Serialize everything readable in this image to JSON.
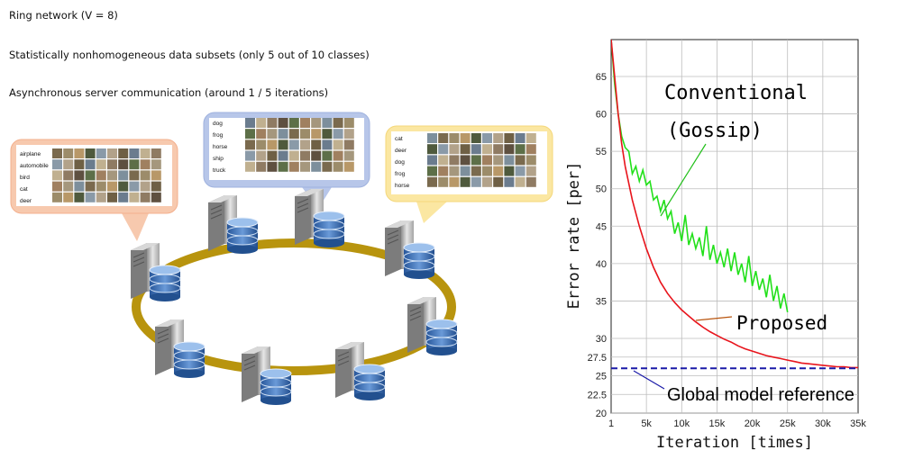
{
  "captions": [
    "Ring network (V = 8)",
    "Statistically nonhomogeneous data subsets (only 5 out of 10 classes)",
    "Asynchronous server communication (around 1 / 5 iterations)"
  ],
  "bubbles": [
    {
      "labels": [
        "airplane",
        "automobile",
        "bird",
        "cat",
        "deer"
      ],
      "fill": "#f7c9ae",
      "stroke": "#f3b08e"
    },
    {
      "labels": [
        "dog",
        "frog",
        "horse",
        "ship",
        "truck"
      ],
      "fill": "#b7c6e9",
      "stroke": "#9fb2de"
    },
    {
      "labels": [
        "cat",
        "deer",
        "dog",
        "frog",
        "horse"
      ],
      "fill": "#fbe7a2",
      "stroke": "#f4d77a"
    }
  ],
  "ring_color": "#b8940e",
  "chart_data": {
    "type": "line",
    "xlabel": "Iteration [times]",
    "ylabel": "Error rate [per]",
    "xticks": [
      "1",
      "5k",
      "10k",
      "15k",
      "20k",
      "25k",
      "30k",
      "35k"
    ],
    "yticks": [
      "20",
      "22.5",
      "25",
      "27.5",
      "30",
      "35",
      "40",
      "45",
      "50",
      "55",
      "60",
      "65"
    ],
    "xlim": [
      1,
      35000
    ],
    "ylim": [
      20,
      70
    ],
    "grid": true,
    "series": [
      {
        "name": "Conventional (Gossip)",
        "color": "#22e01a",
        "x": [
          1,
          500,
          1000,
          1500,
          2000,
          2500,
          3000,
          3500,
          4000,
          4500,
          5000,
          5500,
          6000,
          6500,
          7000,
          7500,
          8000,
          8500,
          9000,
          9500,
          10000,
          10500,
          11000,
          11500,
          12000,
          12500,
          13000,
          13500,
          14000,
          14500,
          15000,
          15500,
          16000,
          16500,
          17000,
          17500,
          18000,
          18500,
          19000,
          19500,
          20000,
          20500,
          21000,
          21500,
          22000,
          22500,
          23000,
          23500,
          24000,
          24500,
          25000
        ],
        "y": [
          70,
          64,
          60,
          57,
          55.5,
          55,
          52,
          53,
          51,
          52.5,
          50.5,
          51,
          48.5,
          49,
          47,
          48.5,
          46,
          47,
          44,
          45.5,
          43,
          46.5,
          42.5,
          44,
          42,
          43.5,
          41,
          45,
          40.5,
          42.5,
          40,
          41.5,
          39.5,
          42,
          39,
          41.5,
          38.5,
          40,
          37.5,
          41,
          37,
          39,
          36.5,
          38,
          35.5,
          38.5,
          35,
          37,
          34,
          36,
          33.5
        ]
      },
      {
        "name": "Proposed",
        "color": "#e8141c",
        "x": [
          1,
          500,
          1000,
          1500,
          2000,
          3000,
          4000,
          5000,
          6000,
          7000,
          8000,
          9000,
          10000,
          11000,
          12000,
          13000,
          14000,
          15000,
          16000,
          17000,
          18000,
          19000,
          20000,
          21000,
          22000,
          23000,
          24000,
          25000,
          26000,
          27000,
          28000,
          29000,
          30000,
          31000,
          32000,
          33000,
          34000,
          35000
        ],
        "y": [
          70,
          65,
          60,
          56,
          53,
          48.5,
          45,
          42,
          39.5,
          37.5,
          36,
          34.8,
          33.8,
          33,
          32.2,
          31.5,
          30.9,
          30.4,
          29.9,
          29.5,
          29,
          28.6,
          28.3,
          28,
          27.7,
          27.5,
          27.3,
          27.1,
          26.9,
          26.7,
          26.6,
          26.5,
          26.4,
          26.3,
          26.2,
          26.2,
          26.1,
          26.1
        ]
      },
      {
        "name": "Global model reference",
        "color": "#1a1aa8",
        "dashed": true,
        "x": [
          1,
          35000
        ],
        "y": [
          26,
          26
        ]
      }
    ],
    "annotations": [
      {
        "text_lines": [
          "Conventional",
          "(Gossip)"
        ],
        "color": "#000000"
      },
      {
        "text_lines": [
          "Proposed"
        ],
        "color": "#000000"
      },
      {
        "text_lines": [
          "Global model reference"
        ],
        "color": "#000000"
      }
    ]
  }
}
